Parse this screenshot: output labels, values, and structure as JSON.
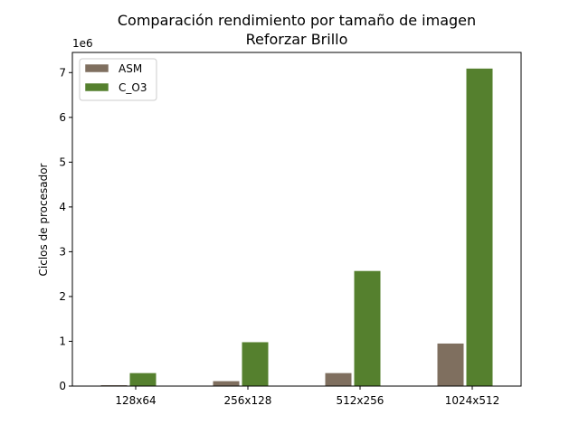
{
  "chart_data": {
    "type": "bar",
    "title": [
      "Comparación rendimiento por tamaño de imagen",
      "Reforzar Brillo"
    ],
    "xlabel": "",
    "ylabel": "Ciclos de procesador",
    "offset_text": "1e6",
    "categories": [
      "128x64",
      "256x128",
      "512x256",
      "1024x512"
    ],
    "series": [
      {
        "name": "ASM",
        "color": "#7f6f5f",
        "values": [
          30000,
          120000,
          300000,
          960000
        ]
      },
      {
        "name": "C_O3",
        "color": "#55802e",
        "values": [
          300000,
          990000,
          2580000,
          7100000
        ]
      }
    ],
    "ylim": [
      0,
      7450000
    ],
    "yticks": [
      0,
      1000000,
      2000000,
      3000000,
      4000000,
      5000000,
      6000000,
      7000000
    ],
    "ytick_labels": [
      "0",
      "1",
      "2",
      "3",
      "4",
      "5",
      "6",
      "7"
    ],
    "legend_position": "upper-left",
    "grid": false
  }
}
